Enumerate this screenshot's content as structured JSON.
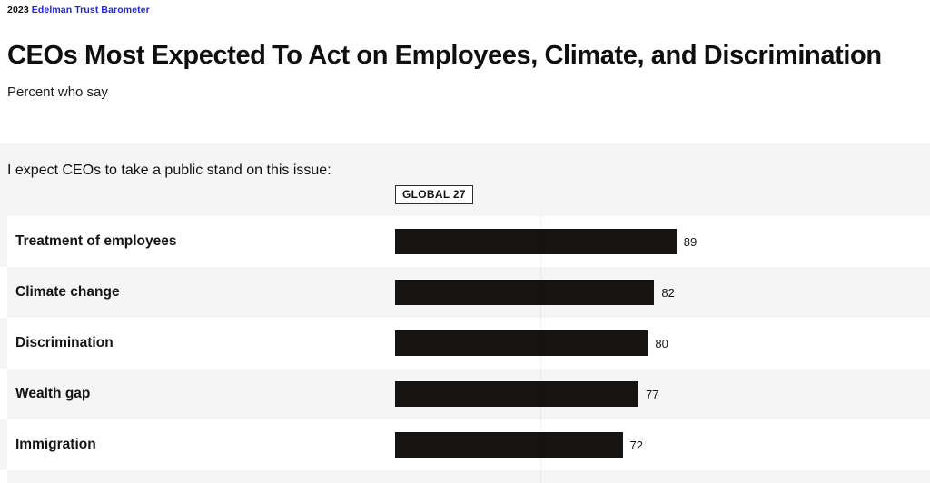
{
  "brand": {
    "year": "2023",
    "name": "Edelman Trust Barometer"
  },
  "header": {
    "title": "CEOs Most Expected To Act on Employees, Climate, and Discrimination",
    "subtitle": "Percent who say"
  },
  "chart_data": {
    "type": "bar",
    "orientation": "horizontal",
    "title": "CEOs Most Expected To Act on Employees, Climate, and Discrimination",
    "subtitle": "Percent who say",
    "question": "I expect CEOs to take a public stand on this issue:",
    "column_header": "GLOBAL 27",
    "categories": [
      "Treatment of employees",
      "Climate change",
      "Discrimination",
      "Wealth gap",
      "Immigration"
    ],
    "values": [
      89,
      82,
      80,
      77,
      72
    ],
    "xlim": [
      0,
      100
    ],
    "value_labels_shown": true,
    "sort": "descending",
    "legend_position": "none",
    "colors": {
      "bar": "#161412",
      "brand_blue": "#2323e6",
      "section_bg": "#f5f5f6",
      "text": "#141414"
    }
  }
}
